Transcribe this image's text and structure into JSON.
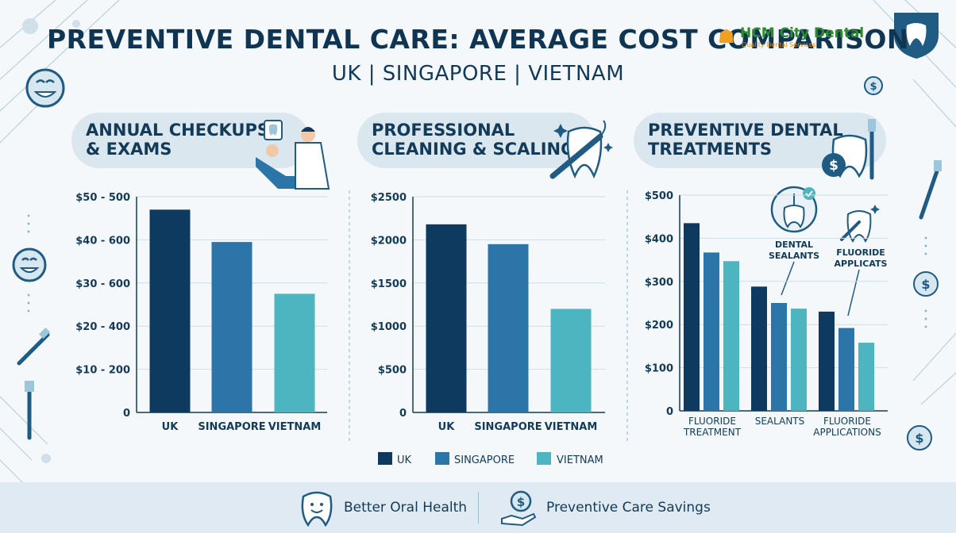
{
  "header": {
    "title": "PREVENTIVE DENTAL CARE: AVERAGE COST COMPARISON",
    "subtitle": "UK | SINGAPORE | VIETNAM"
  },
  "logo": {
    "name": "HCM City Dental",
    "tagline": "Quality Dental Services"
  },
  "colors": {
    "uk": "#0e3a5f",
    "singapore": "#2c75a8",
    "vietnam": "#4db5bf"
  },
  "panels": [
    {
      "heading_line1": "ANNUAL CHECKUPS",
      "heading_line2": "& EXAMS"
    },
    {
      "heading_line1": "PROFESSIONAL",
      "heading_line2": "CLEANING & SCALING"
    },
    {
      "heading_line1": "PREVENTIVE DENTAL",
      "heading_line2": "TREATMENTS"
    }
  ],
  "annotations": {
    "sealants": [
      "DENTAL",
      "SEALANTS"
    ],
    "fluoride": [
      "FLUORIDE",
      "APPLICATS"
    ]
  },
  "legend": {
    "uk": "UK",
    "singapore": "SINGAPORE",
    "vietnam": "VIETNAM"
  },
  "footer": {
    "left": "Better Oral Health",
    "right": "Preventive Care Savings"
  },
  "chart_data": [
    {
      "type": "bar",
      "title": "ANNUAL CHECKUPS & EXAMS",
      "categories": [
        "UK",
        "SINGAPORE",
        "VIETNAM"
      ],
      "values": [
        47,
        39.5,
        27.5
      ],
      "yticks": [
        "0",
        "$10 - 200",
        "$20 - 400",
        "$30 - 600",
        "$40 - 600",
        "$50 - 500"
      ],
      "ylim": [
        0,
        50
      ],
      "grid": true
    },
    {
      "type": "bar",
      "title": "PROFESSIONAL CLEANING & SCALING",
      "categories": [
        "UK",
        "SINGAPORE",
        "VIETNAM"
      ],
      "values": [
        2180,
        1950,
        1200
      ],
      "yticks": [
        "0",
        "$500",
        "$1000",
        "$1500",
        "$2000",
        "$2500"
      ],
      "ylim": [
        0,
        2500
      ],
      "grid": true
    },
    {
      "type": "bar",
      "title": "PREVENTIVE DENTAL TREATMENTS",
      "categories": [
        "FLUORIDE TREATMENT",
        "SEALANTS",
        "FLUORIDE APPLICATIONS"
      ],
      "series": [
        {
          "name": "UK",
          "values": [
            435,
            288,
            230
          ]
        },
        {
          "name": "SINGAPORE",
          "values": [
            367,
            250,
            192
          ]
        },
        {
          "name": "VIETNAM",
          "values": [
            347,
            237,
            158
          ]
        }
      ],
      "yticks": [
        "0",
        "$100",
        "$200",
        "$300",
        "$400",
        "$500"
      ],
      "ylim": [
        0,
        500
      ],
      "grid": true
    }
  ]
}
